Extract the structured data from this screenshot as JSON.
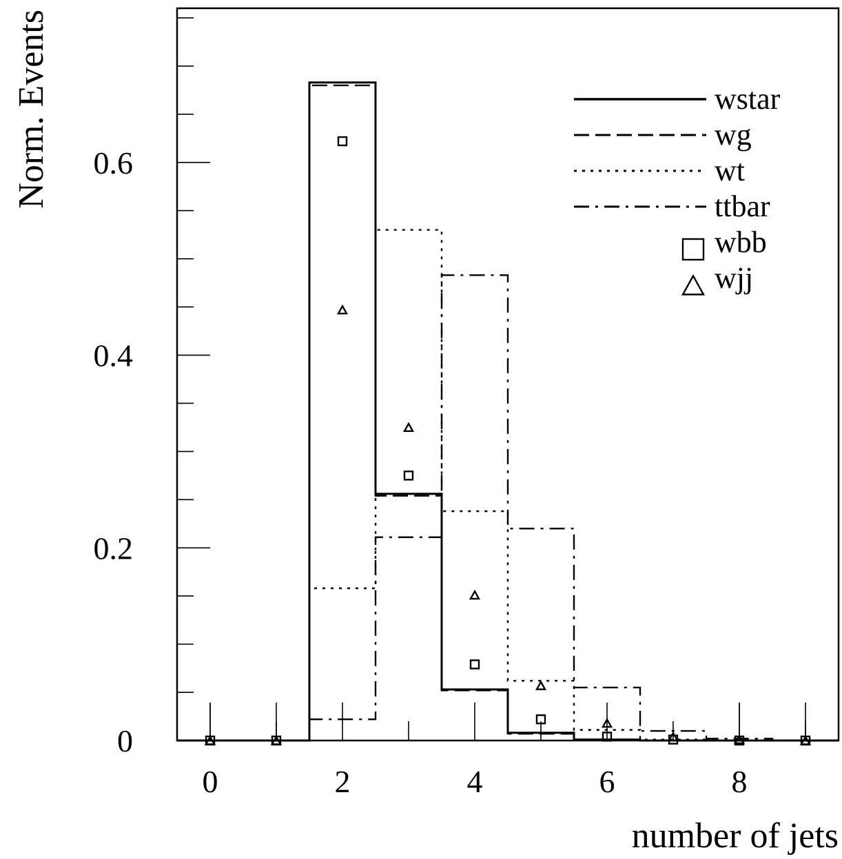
{
  "chart_data": {
    "type": "step-histogram",
    "xlabel": "number of jets",
    "ylabel": "Norm. Events",
    "xlim": [
      -0.5,
      9.5
    ],
    "ylim": [
      0,
      0.76
    ],
    "x_ticks": [
      0,
      2,
      4,
      6,
      8
    ],
    "y_ticks": [
      0,
      0.2,
      0.4,
      0.6
    ],
    "x_tick_labels": [
      "0",
      "2",
      "4",
      "6",
      "8"
    ],
    "y_tick_labels": [
      "0",
      "0.2",
      "0.4",
      "0.6"
    ],
    "grid": false,
    "legend_position": "top-right",
    "bins": [
      0,
      1,
      2,
      3,
      4,
      5,
      6,
      7,
      8,
      9
    ],
    "series": [
      {
        "name": "wstar",
        "style": "solid",
        "values": [
          0,
          0,
          0.683,
          0.256,
          0.053,
          0.008,
          0.001,
          0,
          0,
          0
        ]
      },
      {
        "name": "wg",
        "style": "dashed",
        "values": [
          0,
          0,
          0.68,
          0.254,
          0.052,
          0.007,
          0.001,
          0,
          0,
          0
        ]
      },
      {
        "name": "wt",
        "style": "dotted",
        "values": [
          0,
          0,
          0.158,
          0.53,
          0.238,
          0.062,
          0.011,
          0.001,
          0,
          0
        ]
      },
      {
        "name": "ttbar",
        "style": "dashdot",
        "values": [
          0,
          0,
          0.022,
          0.211,
          0.483,
          0.22,
          0.055,
          0.01,
          0.002,
          0
        ]
      },
      {
        "name": "wbb",
        "style": "square",
        "values": [
          0,
          0,
          0.622,
          0.275,
          0.079,
          0.022,
          0.004,
          0.001,
          0,
          0
        ]
      },
      {
        "name": "wjj",
        "style": "triangle",
        "values": [
          0,
          0,
          0.447,
          0.325,
          0.151,
          0.057,
          0.018,
          0.004,
          0.001,
          0
        ]
      }
    ]
  }
}
